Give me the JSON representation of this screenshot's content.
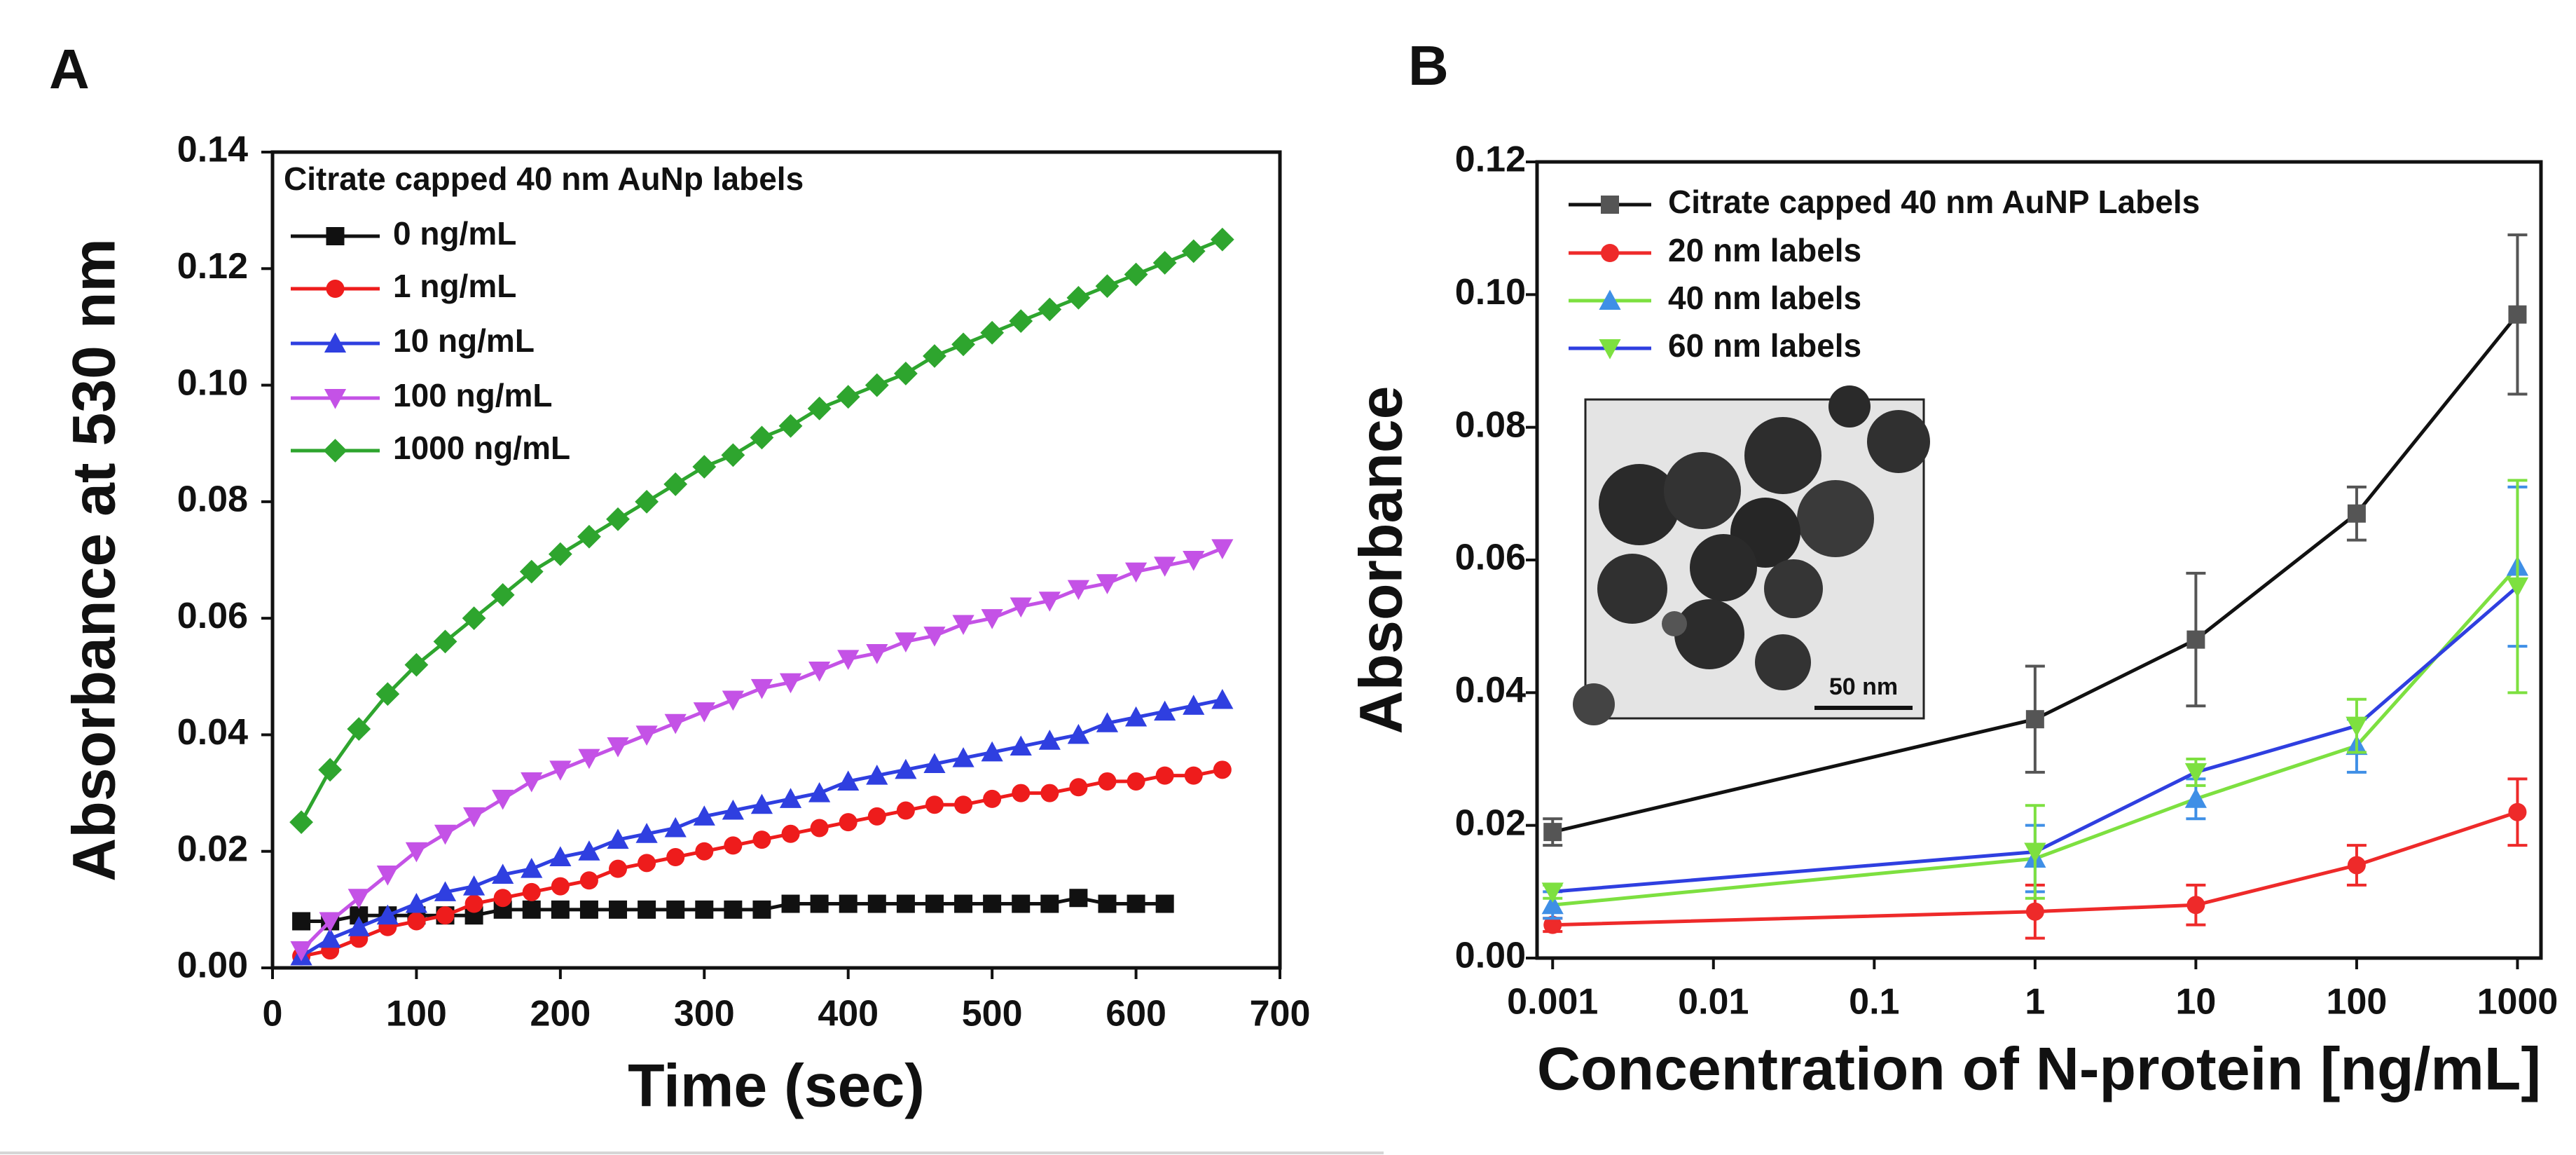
{
  "chart_data": [
    {
      "type": "line",
      "panel_label": "A",
      "xlabel": "Time (sec)",
      "ylabel": "Absorbance at 530 nm",
      "legend_title": "Citrate capped 40 nm AuNp labels",
      "x": [
        20,
        40,
        60,
        80,
        100,
        120,
        140,
        160,
        180,
        200,
        220,
        240,
        260,
        280,
        300,
        320,
        340,
        360,
        380,
        400,
        420,
        440,
        460,
        480,
        500,
        520,
        540,
        560,
        580,
        600,
        620,
        640,
        660
      ],
      "xlim": [
        0,
        700
      ],
      "xticks": [
        0,
        100,
        200,
        300,
        400,
        500,
        600,
        700
      ],
      "ylim": [
        0,
        0.14
      ],
      "yticks": [
        {
          "value": 0,
          "label": "0.00"
        },
        {
          "value": 0.02,
          "label": "0.02"
        },
        {
          "value": 0.04,
          "label": "0.04"
        },
        {
          "value": 0.06,
          "label": "0.06"
        },
        {
          "value": 0.08,
          "label": "0.08"
        },
        {
          "value": 0.1,
          "label": "0.10"
        },
        {
          "value": 0.12,
          "label": "0.12"
        },
        {
          "value": 0.14,
          "label": "0.14"
        }
      ],
      "series": [
        {
          "name": "0 ng/mL",
          "color": "#111111",
          "marker": "square",
          "values": [
            0.008,
            0.008,
            0.009,
            0.009,
            0.009,
            0.009,
            0.009,
            0.01,
            0.01,
            0.01,
            0.01,
            0.01,
            0.01,
            0.01,
            0.01,
            0.01,
            0.01,
            0.011,
            0.011,
            0.011,
            0.011,
            0.011,
            0.011,
            0.011,
            0.011,
            0.011,
            0.011,
            0.012,
            0.011,
            0.011,
            0.011,
            null,
            null
          ]
        },
        {
          "name": "1 ng/mL",
          "color": "#ee1c1c",
          "marker": "circle",
          "values": [
            0.002,
            0.003,
            0.005,
            0.007,
            0.008,
            0.009,
            0.011,
            0.012,
            0.013,
            0.014,
            0.015,
            0.017,
            0.018,
            0.019,
            0.02,
            0.021,
            0.022,
            0.023,
            0.024,
            0.025,
            0.026,
            0.027,
            0.028,
            0.028,
            0.029,
            0.03,
            0.03,
            0.031,
            0.032,
            0.032,
            0.033,
            0.033,
            0.034
          ]
        },
        {
          "name": "10 ng/mL",
          "color": "#2f3fe0",
          "marker": "triangle",
          "values": [
            0.002,
            0.005,
            0.007,
            0.009,
            0.011,
            0.013,
            0.014,
            0.016,
            0.017,
            0.019,
            0.02,
            0.022,
            0.023,
            0.024,
            0.026,
            0.027,
            0.028,
            0.029,
            0.03,
            0.032,
            0.033,
            0.034,
            0.035,
            0.036,
            0.037,
            0.038,
            0.039,
            0.04,
            0.042,
            0.043,
            0.044,
            0.045,
            0.046
          ]
        },
        {
          "name": "100 ng/mL",
          "color": "#c452e6",
          "marker": "triangle-down",
          "values": [
            0.003,
            0.008,
            0.012,
            0.016,
            0.02,
            0.023,
            0.026,
            0.029,
            0.032,
            0.034,
            0.036,
            0.038,
            0.04,
            0.042,
            0.044,
            0.046,
            0.048,
            0.049,
            0.051,
            0.053,
            0.054,
            0.056,
            0.057,
            0.059,
            0.06,
            0.062,
            0.063,
            0.065,
            0.066,
            0.068,
            0.069,
            0.07,
            0.072
          ]
        },
        {
          "name": "1000 ng/mL",
          "color": "#2ea52e",
          "marker": "diamond",
          "values": [
            0.025,
            0.034,
            0.041,
            0.047,
            0.052,
            0.056,
            0.06,
            0.064,
            0.068,
            0.071,
            0.074,
            0.077,
            0.08,
            0.083,
            0.086,
            0.088,
            0.091,
            0.093,
            0.096,
            0.098,
            0.1,
            0.102,
            0.105,
            0.107,
            0.109,
            0.111,
            0.113,
            0.115,
            0.117,
            0.119,
            0.121,
            0.123,
            0.125
          ]
        }
      ]
    },
    {
      "type": "line",
      "panel_label": "B",
      "log_x": true,
      "xlabel": "Concentration of N-protein [ng/mL]",
      "ylabel": "Absorbance",
      "inset_scale_label": "50 nm",
      "x": [
        0.001,
        1,
        10,
        100,
        1000
      ],
      "xlim": [
        0.0008,
        1400
      ],
      "xticks": [
        0.001,
        0.01,
        0.1,
        1,
        10,
        100,
        1000
      ],
      "ylim": [
        0,
        0.12
      ],
      "yticks": [
        {
          "value": 0,
          "label": "0.00"
        },
        {
          "value": 0.02,
          "label": "0.02"
        },
        {
          "value": 0.04,
          "label": "0.04"
        },
        {
          "value": 0.06,
          "label": "0.06"
        },
        {
          "value": 0.08,
          "label": "0.08"
        },
        {
          "value": 0.1,
          "label": "0.10"
        },
        {
          "value": 0.12,
          "label": "0.12"
        }
      ],
      "series": [
        {
          "name": "Citrate capped 40 nm AuNP Labels",
          "color": "#111111",
          "marker_color": "#555555",
          "marker": "square",
          "values": [
            0.019,
            0.036,
            0.048,
            0.067,
            0.097
          ],
          "errors": [
            0.002,
            0.008,
            0.01,
            0.004,
            0.012
          ]
        },
        {
          "name": "20 nm labels",
          "color": "#ee2a2a",
          "marker_color": "#ee2a2a",
          "marker": "circle",
          "values": [
            0.005,
            0.007,
            0.008,
            0.014,
            0.022
          ],
          "errors": [
            0.001,
            0.004,
            0.003,
            0.003,
            0.005
          ]
        },
        {
          "name": "40 nm labels",
          "color": "#7de040",
          "marker_color": "#3f8fe6",
          "marker": "triangle",
          "values": [
            0.008,
            0.015,
            0.024,
            0.032,
            0.059
          ],
          "errors": [
            0.002,
            0.005,
            0.003,
            0.004,
            0.012
          ]
        },
        {
          "name": "60 nm labels",
          "color": "#2f3fe0",
          "marker_color": "#7de040",
          "marker": "triangle-down",
          "values": [
            0.01,
            0.016,
            0.028,
            0.035,
            0.056
          ],
          "errors": [
            0.001,
            0.007,
            0.002,
            0.004,
            0.016
          ]
        }
      ]
    }
  ]
}
